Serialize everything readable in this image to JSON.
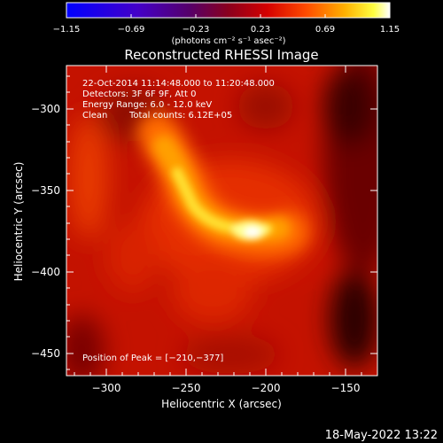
{
  "colorbar": {
    "tick_labels": [
      "−1.15",
      "−0.69",
      "−0.23",
      "0.23",
      "0.69",
      "1.15"
    ],
    "units": "(photons cm⁻² s⁻¹ asec⁻²)",
    "range": [
      -1.15,
      1.15
    ],
    "colormap": "blue-purple-red-yellow-white"
  },
  "image": {
    "title": "Reconstructed RHESSI Image",
    "time_range": "22-Oct-2014 11:14:48.000 to 11:20:48.000",
    "detectors": "Detectors: 3F 6F 9F, Att 0",
    "energy_range": "Energy Range: 6.0 - 12.0 keV",
    "algorithm": "Clean",
    "total_counts": "Total counts: 6.12E+05",
    "peak_position": "Position of Peak = [−210,−377]"
  },
  "axes": {
    "xlabel": "Heliocentric X (arcsec)",
    "ylabel": "Heliocentric Y (arcsec)",
    "x_ticks": [
      "−300",
      "−250",
      "−200",
      "−150"
    ],
    "y_ticks": [
      "−300",
      "−350",
      "−400",
      "−450"
    ],
    "xlim": [
      -325,
      -130
    ],
    "ylim": [
      -466,
      -274
    ]
  },
  "footer": {
    "timestamp": "18-May-2022 13:22"
  },
  "colors": {
    "background": "#000000",
    "text": "#ffffff"
  }
}
